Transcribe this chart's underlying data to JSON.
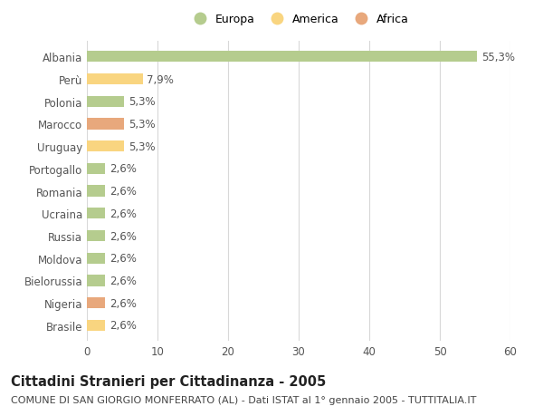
{
  "categories": [
    "Albania",
    "Perù",
    "Polonia",
    "Marocco",
    "Uruguay",
    "Portogallo",
    "Romania",
    "Ucraina",
    "Russia",
    "Moldova",
    "Bielorussia",
    "Nigeria",
    "Brasile"
  ],
  "values": [
    55.3,
    7.9,
    5.3,
    5.3,
    5.3,
    2.6,
    2.6,
    2.6,
    2.6,
    2.6,
    2.6,
    2.6,
    2.6
  ],
  "labels": [
    "55,3%",
    "7,9%",
    "5,3%",
    "5,3%",
    "5,3%",
    "2,6%",
    "2,6%",
    "2,6%",
    "2,6%",
    "2,6%",
    "2,6%",
    "2,6%",
    "2,6%"
  ],
  "continents": [
    "Europa",
    "America",
    "Europa",
    "Africa",
    "America",
    "Europa",
    "Europa",
    "Europa",
    "Europa",
    "Europa",
    "Europa",
    "Africa",
    "America"
  ],
  "colors": {
    "Europa": "#b5cc8e",
    "America": "#f9d580",
    "Africa": "#e8a87c"
  },
  "xlim": [
    0,
    60
  ],
  "xticks": [
    0,
    10,
    20,
    30,
    40,
    50,
    60
  ],
  "title": "Cittadini Stranieri per Cittadinanza - 2005",
  "subtitle": "COMUNE DI SAN GIORGIO MONFERRATO (AL) - Dati ISTAT al 1° gennaio 2005 - TUTTITALIA.IT",
  "background_color": "#ffffff",
  "grid_color": "#d8d8d8",
  "bar_height": 0.5,
  "title_fontsize": 10.5,
  "subtitle_fontsize": 8,
  "label_fontsize": 8.5,
  "tick_fontsize": 8.5,
  "legend_fontsize": 9
}
